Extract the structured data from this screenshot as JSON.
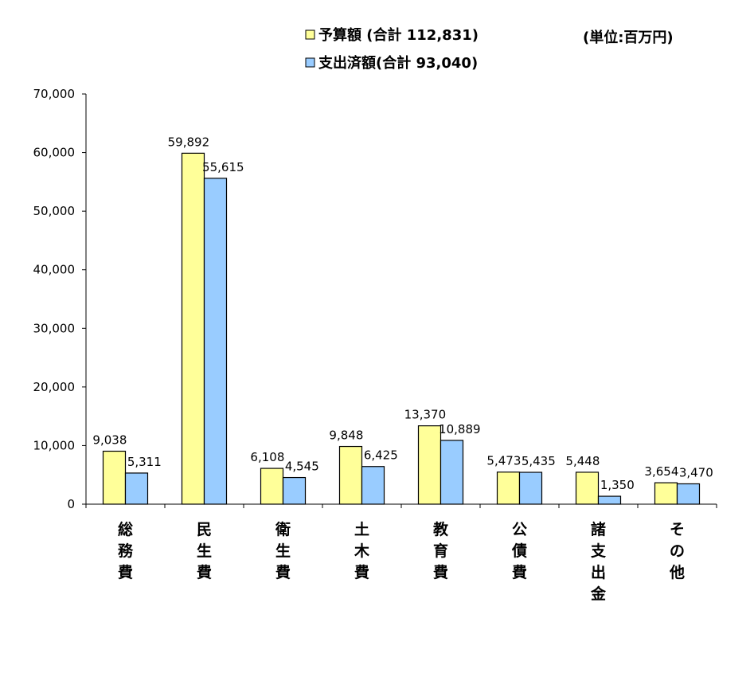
{
  "chart_data": {
    "type": "bar",
    "categories": [
      "総\n務\n費",
      "民\n生\n費",
      "衛\n生\n費",
      "土\n木\n費",
      "教\n育\n費",
      "公\n債\n費",
      "諸\n支\n出\n金",
      "そ\nの\n他"
    ],
    "series": [
      {
        "name": "予算額 (合計 112,831)",
        "values": [
          9038,
          59892,
          6108,
          9848,
          13370,
          5473,
          5448,
          3654
        ],
        "labels": [
          "9,038",
          "59,892",
          "6,108",
          "9,848",
          "13,370",
          "5,473",
          "5,448",
          "3,654"
        ]
      },
      {
        "name": "支出済額(合計 93,040)",
        "values": [
          5311,
          55615,
          4545,
          6425,
          10889,
          5435,
          1350,
          3470
        ],
        "labels": [
          "5,311",
          "55,615",
          "4,545",
          "6,425",
          "10,889",
          "5,435",
          "1,350",
          "3,470"
        ]
      }
    ],
    "ylim": [
      0,
      70000
    ],
    "yticks": [
      "0",
      "10,000",
      "20,000",
      "30,000",
      "40,000",
      "50,000",
      "60,000",
      "70,000"
    ],
    "unit": "(単位:百万円)",
    "legend_labels": [
      "予算額 (合計 112,831)",
      "支出済額(合計 93,040)"
    ],
    "colors": {
      "series1": "#ffff99",
      "series2": "#99ccff",
      "outline": "#000000"
    },
    "legend_position": "top-center",
    "grid": false
  }
}
